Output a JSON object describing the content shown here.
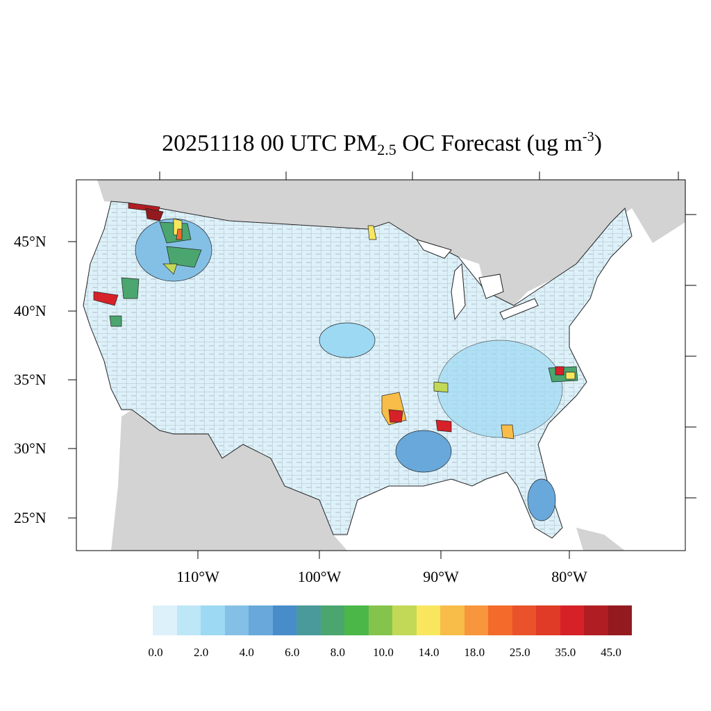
{
  "title": {
    "main": "20251118 00 UTC PM",
    "sub": "2.5",
    "middle": " OC Forecast (ug m",
    "sup": "-3",
    "end": ")"
  },
  "lat_labels": [
    "45°N",
    "40°N",
    "35°N",
    "30°N",
    "25°N"
  ],
  "lon_labels": [
    "110°W",
    "100°W",
    "90°W",
    "80°W"
  ],
  "legend": {
    "labels": [
      "0.0",
      "2.0",
      "4.0",
      "6.0",
      "8.0",
      "10.0",
      "14.0",
      "18.0",
      "25.0",
      "35.0",
      "45.0"
    ],
    "colors": [
      "#ddf1fa",
      "#bde6f7",
      "#9dd9f3",
      "#84c0e6",
      "#69a8da",
      "#488dc9",
      "#4a9a9c",
      "#4aa66e",
      "#4bb748",
      "#84c44c",
      "#c2d957",
      "#f8e75e",
      "#f8bc48",
      "#f7963c",
      "#f36a2b",
      "#e9522b",
      "#df3b27",
      "#d62128",
      "#b01d22",
      "#931a1e"
    ]
  },
  "map": {
    "land_color": "#d3d3d3",
    "ocean_color": "#ffffff",
    "county_base_color": "#ddf1fa"
  }
}
